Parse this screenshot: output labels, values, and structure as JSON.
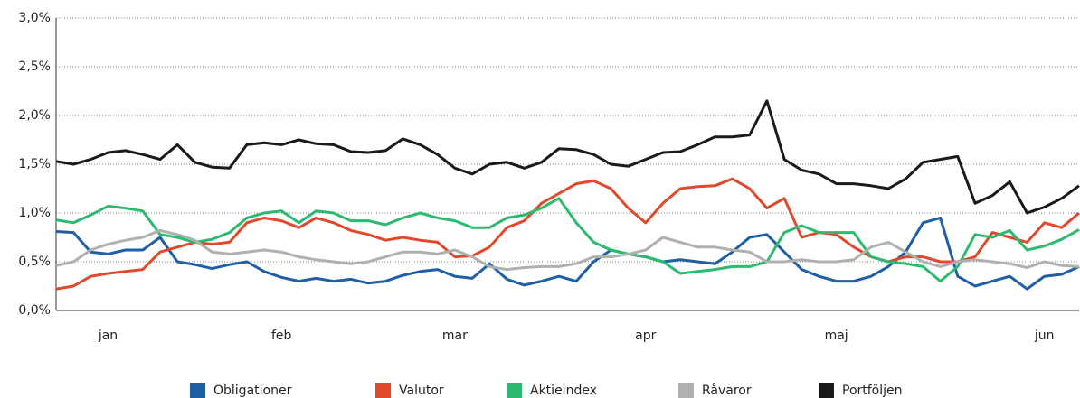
{
  "chart_data": {
    "type": "line",
    "categories": [
      null,
      null,
      null,
      "jan",
      null,
      null,
      null,
      null,
      null,
      null,
      null,
      null,
      null,
      "feb",
      null,
      null,
      null,
      null,
      null,
      null,
      null,
      null,
      null,
      "mar",
      null,
      null,
      null,
      null,
      null,
      null,
      null,
      null,
      null,
      null,
      "apr",
      null,
      null,
      null,
      null,
      null,
      null,
      null,
      null,
      null,
      null,
      "maj",
      null,
      null,
      null,
      null,
      null,
      null,
      null,
      null,
      null,
      null,
      null,
      "jun",
      null,
      null
    ],
    "ylim": [
      0,
      3
    ],
    "yticks": [
      {
        "value": 0,
        "label": "0,0%"
      },
      {
        "value": 0.5,
        "label": "0,5%"
      },
      {
        "value": 1,
        "label": "1,0%"
      },
      {
        "value": 1.5,
        "label": "1,5%"
      },
      {
        "value": 2,
        "label": "2,0%"
      },
      {
        "value": 2.5,
        "label": "2,5%"
      },
      {
        "value": 3,
        "label": "3,0%"
      }
    ],
    "grid": true,
    "legend": "bottom",
    "series": [
      {
        "name": "Obligationer",
        "color": "#1f5fa6",
        "values": [
          0.81,
          0.8,
          0.6,
          0.58,
          0.62,
          0.62,
          0.75,
          0.5,
          0.47,
          0.43,
          0.47,
          0.5,
          0.4,
          0.34,
          0.3,
          0.33,
          0.3,
          0.32,
          0.28,
          0.3,
          0.36,
          0.4,
          0.42,
          0.35,
          0.33,
          0.48,
          0.32,
          0.26,
          0.3,
          0.35,
          0.3,
          0.5,
          0.62,
          0.58,
          0.55,
          0.5,
          0.52,
          0.5,
          0.48,
          0.6,
          0.75,
          0.78,
          0.6,
          0.42,
          0.35,
          0.3,
          0.3,
          0.35,
          0.45,
          0.6,
          0.9,
          0.95,
          0.35,
          0.25,
          0.3,
          0.35,
          0.22,
          0.35,
          0.37,
          0.45
        ]
      },
      {
        "name": "Valutor",
        "color": "#e0492b",
        "values": [
          0.22,
          0.25,
          0.35,
          0.38,
          0.4,
          0.42,
          0.6,
          0.65,
          0.7,
          0.68,
          0.7,
          0.9,
          0.95,
          0.92,
          0.85,
          0.95,
          0.9,
          0.82,
          0.78,
          0.72,
          0.75,
          0.72,
          0.7,
          0.55,
          0.56,
          0.65,
          0.85,
          0.92,
          1.1,
          1.2,
          1.3,
          1.33,
          1.25,
          1.05,
          0.9,
          1.1,
          1.25,
          1.27,
          1.28,
          1.35,
          1.25,
          1.05,
          1.15,
          0.75,
          0.8,
          0.78,
          0.65,
          0.55,
          0.5,
          0.55,
          0.55,
          0.5,
          0.5,
          0.55,
          0.8,
          0.75,
          0.7,
          0.9,
          0.85,
          1.0
        ]
      },
      {
        "name": "Aktieindex",
        "color": "#2dba6e",
        "values": [
          0.93,
          0.9,
          0.98,
          1.07,
          1.05,
          1.02,
          0.78,
          0.75,
          0.7,
          0.73,
          0.8,
          0.95,
          1.0,
          1.02,
          0.9,
          1.02,
          1.0,
          0.92,
          0.92,
          0.88,
          0.95,
          1.0,
          0.95,
          0.92,
          0.85,
          0.85,
          0.95,
          0.98,
          1.05,
          1.15,
          0.9,
          0.7,
          0.62,
          0.58,
          0.55,
          0.5,
          0.38,
          0.4,
          0.42,
          0.45,
          0.45,
          0.5,
          0.8,
          0.87,
          0.8,
          0.8,
          0.8,
          0.55,
          0.5,
          0.48,
          0.45,
          0.3,
          0.45,
          0.78,
          0.75,
          0.82,
          0.62,
          0.66,
          0.73,
          0.83
        ]
      },
      {
        "name": "Råvaror",
        "color": "#b0b0b0",
        "values": [
          0.46,
          0.5,
          0.62,
          0.68,
          0.72,
          0.75,
          0.82,
          0.78,
          0.72,
          0.6,
          0.58,
          0.6,
          0.62,
          0.6,
          0.55,
          0.52,
          0.5,
          0.48,
          0.5,
          0.55,
          0.6,
          0.6,
          0.58,
          0.62,
          0.55,
          0.45,
          0.42,
          0.44,
          0.45,
          0.45,
          0.48,
          0.55,
          0.55,
          0.58,
          0.62,
          0.75,
          0.7,
          0.65,
          0.65,
          0.62,
          0.6,
          0.5,
          0.5,
          0.52,
          0.5,
          0.5,
          0.52,
          0.65,
          0.7,
          0.6,
          0.5,
          0.45,
          0.5,
          0.52,
          0.5,
          0.48,
          0.44,
          0.5,
          0.46,
          0.45
        ]
      },
      {
        "name": "Portföljen",
        "color": "#1a1a1a",
        "values": [
          1.53,
          1.5,
          1.55,
          1.62,
          1.64,
          1.6,
          1.55,
          1.7,
          1.52,
          1.47,
          1.46,
          1.7,
          1.72,
          1.7,
          1.75,
          1.71,
          1.7,
          1.63,
          1.62,
          1.64,
          1.76,
          1.7,
          1.6,
          1.46,
          1.4,
          1.5,
          1.52,
          1.46,
          1.52,
          1.66,
          1.65,
          1.6,
          1.5,
          1.48,
          1.55,
          1.62,
          1.63,
          1.7,
          1.78,
          1.78,
          1.8,
          2.15,
          1.55,
          1.44,
          1.4,
          1.3,
          1.3,
          1.28,
          1.25,
          1.35,
          1.52,
          1.55,
          1.58,
          1.1,
          1.18,
          1.32,
          1.0,
          1.06,
          1.15,
          1.28
        ]
      }
    ]
  }
}
